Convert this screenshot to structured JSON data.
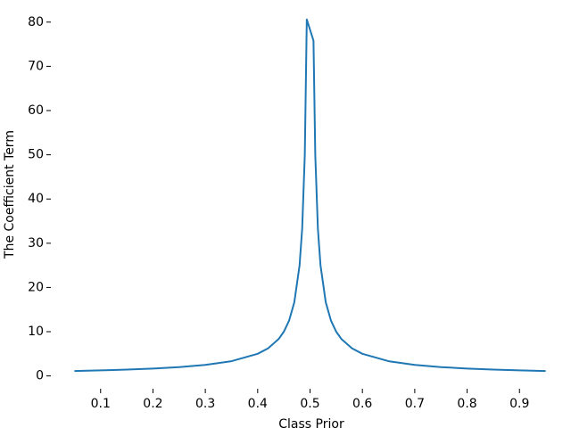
{
  "chart_data": {
    "type": "line",
    "x_label": "Class Prior",
    "y_label": "The Coefficient Term",
    "x": [
      0.05,
      0.1,
      0.15,
      0.2,
      0.25,
      0.3,
      0.35,
      0.4,
      0.42,
      0.44,
      0.45,
      0.46,
      0.47,
      0.48,
      0.485,
      0.49,
      0.4938,
      0.5066,
      0.51,
      0.515,
      0.52,
      0.53,
      0.54,
      0.55,
      0.56,
      0.58,
      0.6,
      0.65,
      0.7,
      0.75,
      0.8,
      0.85,
      0.9,
      0.95
    ],
    "series": [
      {
        "color": "#1f77b4",
        "values": [
          1.11,
          1.25,
          1.43,
          1.67,
          2.0,
          2.5,
          3.33,
          5.0,
          6.25,
          8.33,
          10,
          12.5,
          16.67,
          25,
          33.3,
          50,
          80.6,
          75.8,
          50,
          33.3,
          25,
          16.67,
          12.5,
          10,
          8.33,
          6.25,
          5,
          3.33,
          2.5,
          2,
          1.67,
          1.43,
          1.25,
          1.11
        ]
      }
    ],
    "xlim": [
      0.005,
      0.995
    ],
    "xticks": [
      0.1,
      0.2,
      0.3,
      0.4,
      0.5,
      0.6,
      0.7,
      0.8,
      0.9
    ],
    "ylim": [
      -2.9,
      85
    ],
    "yticks": [
      0,
      10,
      20,
      30,
      40,
      50,
      60,
      70,
      80
    ]
  }
}
